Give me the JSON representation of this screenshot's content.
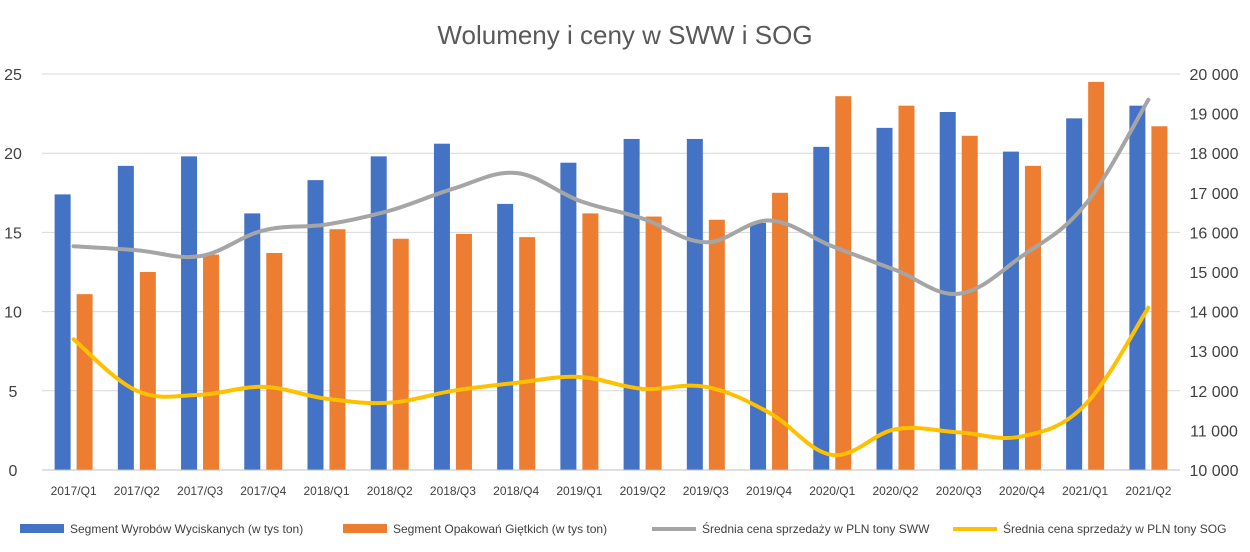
{
  "chart_data": {
    "type": "bar",
    "title": "Wolumeny i ceny w SWW i SOG",
    "categories": [
      "2017/Q1",
      "2017/Q2",
      "2017/Q3",
      "2017/Q4",
      "2018/Q1",
      "2018/Q2",
      "2018/Q3",
      "2018/Q4",
      "2019/Q1",
      "2019/Q2",
      "2019/Q3",
      "2019/Q4",
      "2020/Q1",
      "2020/Q2",
      "2020/Q3",
      "2020/Q4",
      "2021/Q1",
      "2021/Q2"
    ],
    "y_left": {
      "ylim": [
        0,
        25
      ],
      "ticks": [
        0,
        5,
        10,
        15,
        20,
        25
      ]
    },
    "y_right": {
      "ylim": [
        10000,
        20000
      ],
      "ticks": [
        10000,
        11000,
        12000,
        13000,
        14000,
        15000,
        16000,
        17000,
        18000,
        19000,
        20000
      ],
      "tick_labels": [
        "10 000",
        "11 000",
        "12 000",
        "13 000",
        "14 000",
        "15 000",
        "16 000",
        "17 000",
        "18 000",
        "19 000",
        "20 000"
      ]
    },
    "series": [
      {
        "name": "Segment Wyrobów Wyciskanych (w tys ton)",
        "kind": "bar",
        "axis": "left",
        "color": "#4472C4",
        "values": [
          17.4,
          19.2,
          19.8,
          16.2,
          18.3,
          19.8,
          20.6,
          16.8,
          19.4,
          20.9,
          20.9,
          15.6,
          20.4,
          21.6,
          22.6,
          20.1,
          22.2,
          23.0
        ]
      },
      {
        "name": "Segment Opakowań Giętkich (w tys ton)",
        "kind": "bar",
        "axis": "left",
        "color": "#ED7D31",
        "values": [
          11.1,
          12.5,
          13.6,
          13.7,
          15.2,
          14.6,
          14.9,
          14.7,
          16.2,
          16.0,
          15.8,
          17.5,
          23.6,
          23.0,
          21.1,
          19.2,
          24.5,
          21.7
        ]
      },
      {
        "name": "Średnia cena sprzedaży w PLN tony SWW",
        "kind": "line",
        "axis": "right",
        "color": "#A5A5A5",
        "values": [
          15650,
          15550,
          15400,
          16050,
          16200,
          16550,
          17100,
          17500,
          16800,
          16350,
          15750,
          16300,
          15650,
          15050,
          14450,
          15400,
          16700,
          19350
        ]
      },
      {
        "name": "Średnia cena sprzedaży w PLN tony SOG",
        "kind": "line",
        "axis": "right",
        "color": "#FFC000",
        "values": [
          13300,
          12000,
          11900,
          12100,
          11800,
          11700,
          12000,
          12200,
          12350,
          12050,
          12100,
          11450,
          10380,
          11030,
          10950,
          10850,
          11650,
          14100
        ]
      }
    ],
    "grid": true,
    "legend": "bottom"
  }
}
